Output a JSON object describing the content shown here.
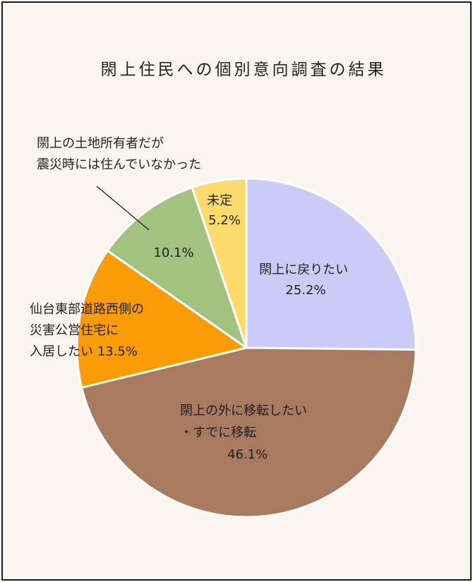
{
  "chart_data": {
    "type": "pie",
    "title": "閖上住民への個別意向調査の結果",
    "start_angle_deg": 0,
    "direction": "clockwise",
    "slices": [
      {
        "label_lines": [
          "閖上に戻りたい",
          "25.2%"
        ],
        "value": 25.2,
        "color": "#cccbf8"
      },
      {
        "label_lines": [
          "閖上の外に移転したい",
          "・すでに移転",
          "46.1%"
        ],
        "value": 46.1,
        "color": "#a87a60"
      },
      {
        "label_lines": [
          "仙台東部道路西側の",
          "災害公営住宅に",
          "入居したい 13.5%"
        ],
        "value": 13.5,
        "color": "#f99c06"
      },
      {
        "label_lines": [
          "10.1%"
        ],
        "value": 10.1,
        "color": "#a2c27f"
      },
      {
        "label_lines": [
          "未定",
          "5.2%"
        ],
        "value": 5.2,
        "color": "#fadb6c"
      }
    ],
    "callout": {
      "slice": 3,
      "lines": [
        "閖上の土地所有者だが",
        "震災時には住んでいなかった"
      ]
    }
  }
}
